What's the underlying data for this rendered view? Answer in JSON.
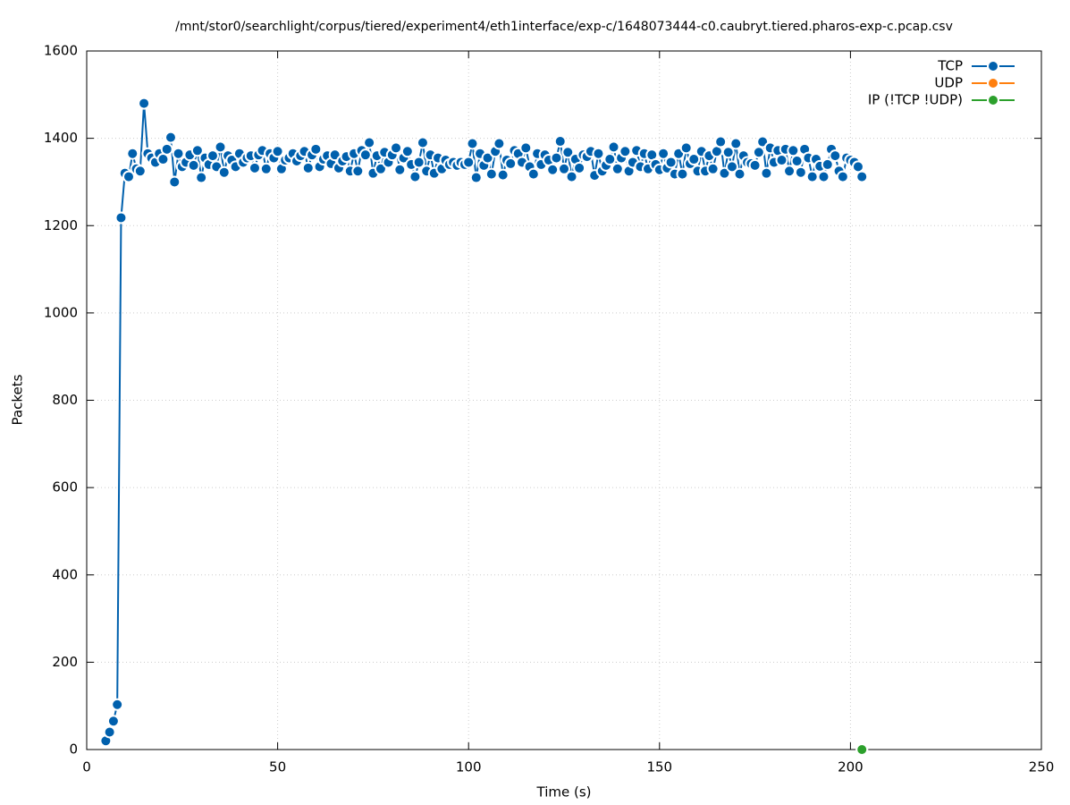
{
  "chart_data": {
    "type": "line",
    "title": "/mnt/stor0/searchlight/corpus/tiered/experiment4/eth1interface/exp-c/1648073444-c0.caubryt.tiered.pharos-exp-c.pcap.csv",
    "x_label": "Time (s)",
    "y_label": "Packets",
    "xlim": [
      0,
      250
    ],
    "ylim": [
      0,
      1600
    ],
    "xticks": [
      0,
      50,
      100,
      150,
      200,
      250
    ],
    "yticks": [
      0,
      200,
      400,
      600,
      800,
      1000,
      1200,
      1400,
      1600
    ],
    "grid": true,
    "legend": "top-right",
    "series": [
      {
        "name": "TCP",
        "color": "#0060ad",
        "x": [
          5,
          6,
          7,
          8,
          9,
          10,
          11,
          12,
          13,
          14,
          15,
          16,
          17,
          18,
          19,
          20,
          21,
          22,
          23,
          24,
          25,
          26,
          27,
          28,
          29,
          30,
          31,
          32,
          33,
          34,
          35,
          36,
          37,
          38,
          39,
          40,
          41,
          42,
          43,
          44,
          45,
          46,
          47,
          48,
          49,
          50,
          51,
          52,
          53,
          54,
          55,
          56,
          57,
          58,
          59,
          60,
          61,
          62,
          63,
          64,
          65,
          66,
          67,
          68,
          69,
          70,
          71,
          72,
          73,
          74,
          75,
          76,
          77,
          78,
          79,
          80,
          81,
          82,
          83,
          84,
          85,
          86,
          87,
          88,
          89,
          90,
          91,
          92,
          93,
          94,
          95,
          96,
          97,
          98,
          99,
          100,
          101,
          102,
          103,
          104,
          105,
          106,
          107,
          108,
          109,
          110,
          111,
          112,
          113,
          114,
          115,
          116,
          117,
          118,
          119,
          120,
          121,
          122,
          123,
          124,
          125,
          126,
          127,
          128,
          129,
          130,
          131,
          132,
          133,
          134,
          135,
          136,
          137,
          138,
          139,
          140,
          141,
          142,
          143,
          144,
          145,
          146,
          147,
          148,
          149,
          150,
          151,
          152,
          153,
          154,
          155,
          156,
          157,
          158,
          159,
          160,
          161,
          162,
          163,
          164,
          165,
          166,
          167,
          168,
          169,
          170,
          171,
          172,
          173,
          174,
          175,
          176,
          177,
          178,
          179,
          180,
          181,
          182,
          183,
          184,
          185,
          186,
          187,
          188,
          189,
          190,
          191,
          192,
          193,
          194,
          195,
          196,
          197,
          198,
          199,
          200,
          201,
          202,
          203
        ],
        "values": [
          20,
          40,
          65,
          103,
          1218,
          1320,
          1312,
          1365,
          1330,
          1325,
          1480,
          1365,
          1355,
          1345,
          1365,
          1352,
          1375,
          1402,
          1300,
          1365,
          1335,
          1345,
          1362,
          1338,
          1372,
          1310,
          1355,
          1340,
          1360,
          1335,
          1380,
          1322,
          1360,
          1350,
          1335,
          1365,
          1345,
          1355,
          1360,
          1332,
          1362,
          1372,
          1330,
          1365,
          1355,
          1370,
          1330,
          1350,
          1355,
          1365,
          1348,
          1360,
          1370,
          1332,
          1362,
          1375,
          1335,
          1352,
          1360,
          1342,
          1362,
          1332,
          1348,
          1358,
          1325,
          1365,
          1325,
          1372,
          1362,
          1390,
          1320,
          1360,
          1330,
          1368,
          1345,
          1362,
          1378,
          1328,
          1355,
          1370,
          1340,
          1312,
          1345,
          1390,
          1325,
          1362,
          1320,
          1355,
          1330,
          1350,
          1340,
          1345,
          1338,
          1345,
          1340,
          1345,
          1388,
          1310,
          1365,
          1338,
          1355,
          1318,
          1370,
          1388,
          1316,
          1350,
          1342,
          1372,
          1365,
          1345,
          1378,
          1335,
          1318,
          1365,
          1340,
          1362,
          1350,
          1328,
          1355,
          1393,
          1330,
          1368,
          1312,
          1352,
          1332,
          1362,
          1358,
          1370,
          1315,
          1365,
          1325,
          1338,
          1352,
          1380,
          1330,
          1355,
          1370,
          1325,
          1345,
          1372,
          1335,
          1365,
          1330,
          1362,
          1340,
          1328,
          1365,
          1332,
          1345,
          1318,
          1365,
          1318,
          1378,
          1342,
          1352,
          1325,
          1370,
          1325,
          1360,
          1330,
          1370,
          1392,
          1320,
          1368,
          1335,
          1388,
          1318,
          1360,
          1345,
          1342,
          1338,
          1368,
          1392,
          1320,
          1378,
          1345,
          1372,
          1350,
          1375,
          1325,
          1372,
          1348,
          1322,
          1375,
          1355,
          1312,
          1352,
          1336,
          1312,
          1340,
          1375,
          1360,
          1325,
          1312,
          1355,
          1350,
          1345,
          1335,
          1312
        ]
      },
      {
        "name": "UDP",
        "color": "#ff7f0e",
        "x": [
          203
        ],
        "values": [
          0
        ]
      },
      {
        "name": "IP (!TCP  !UDP)",
        "color": "#2ca02c",
        "x": [
          203
        ],
        "values": [
          0
        ]
      }
    ]
  }
}
